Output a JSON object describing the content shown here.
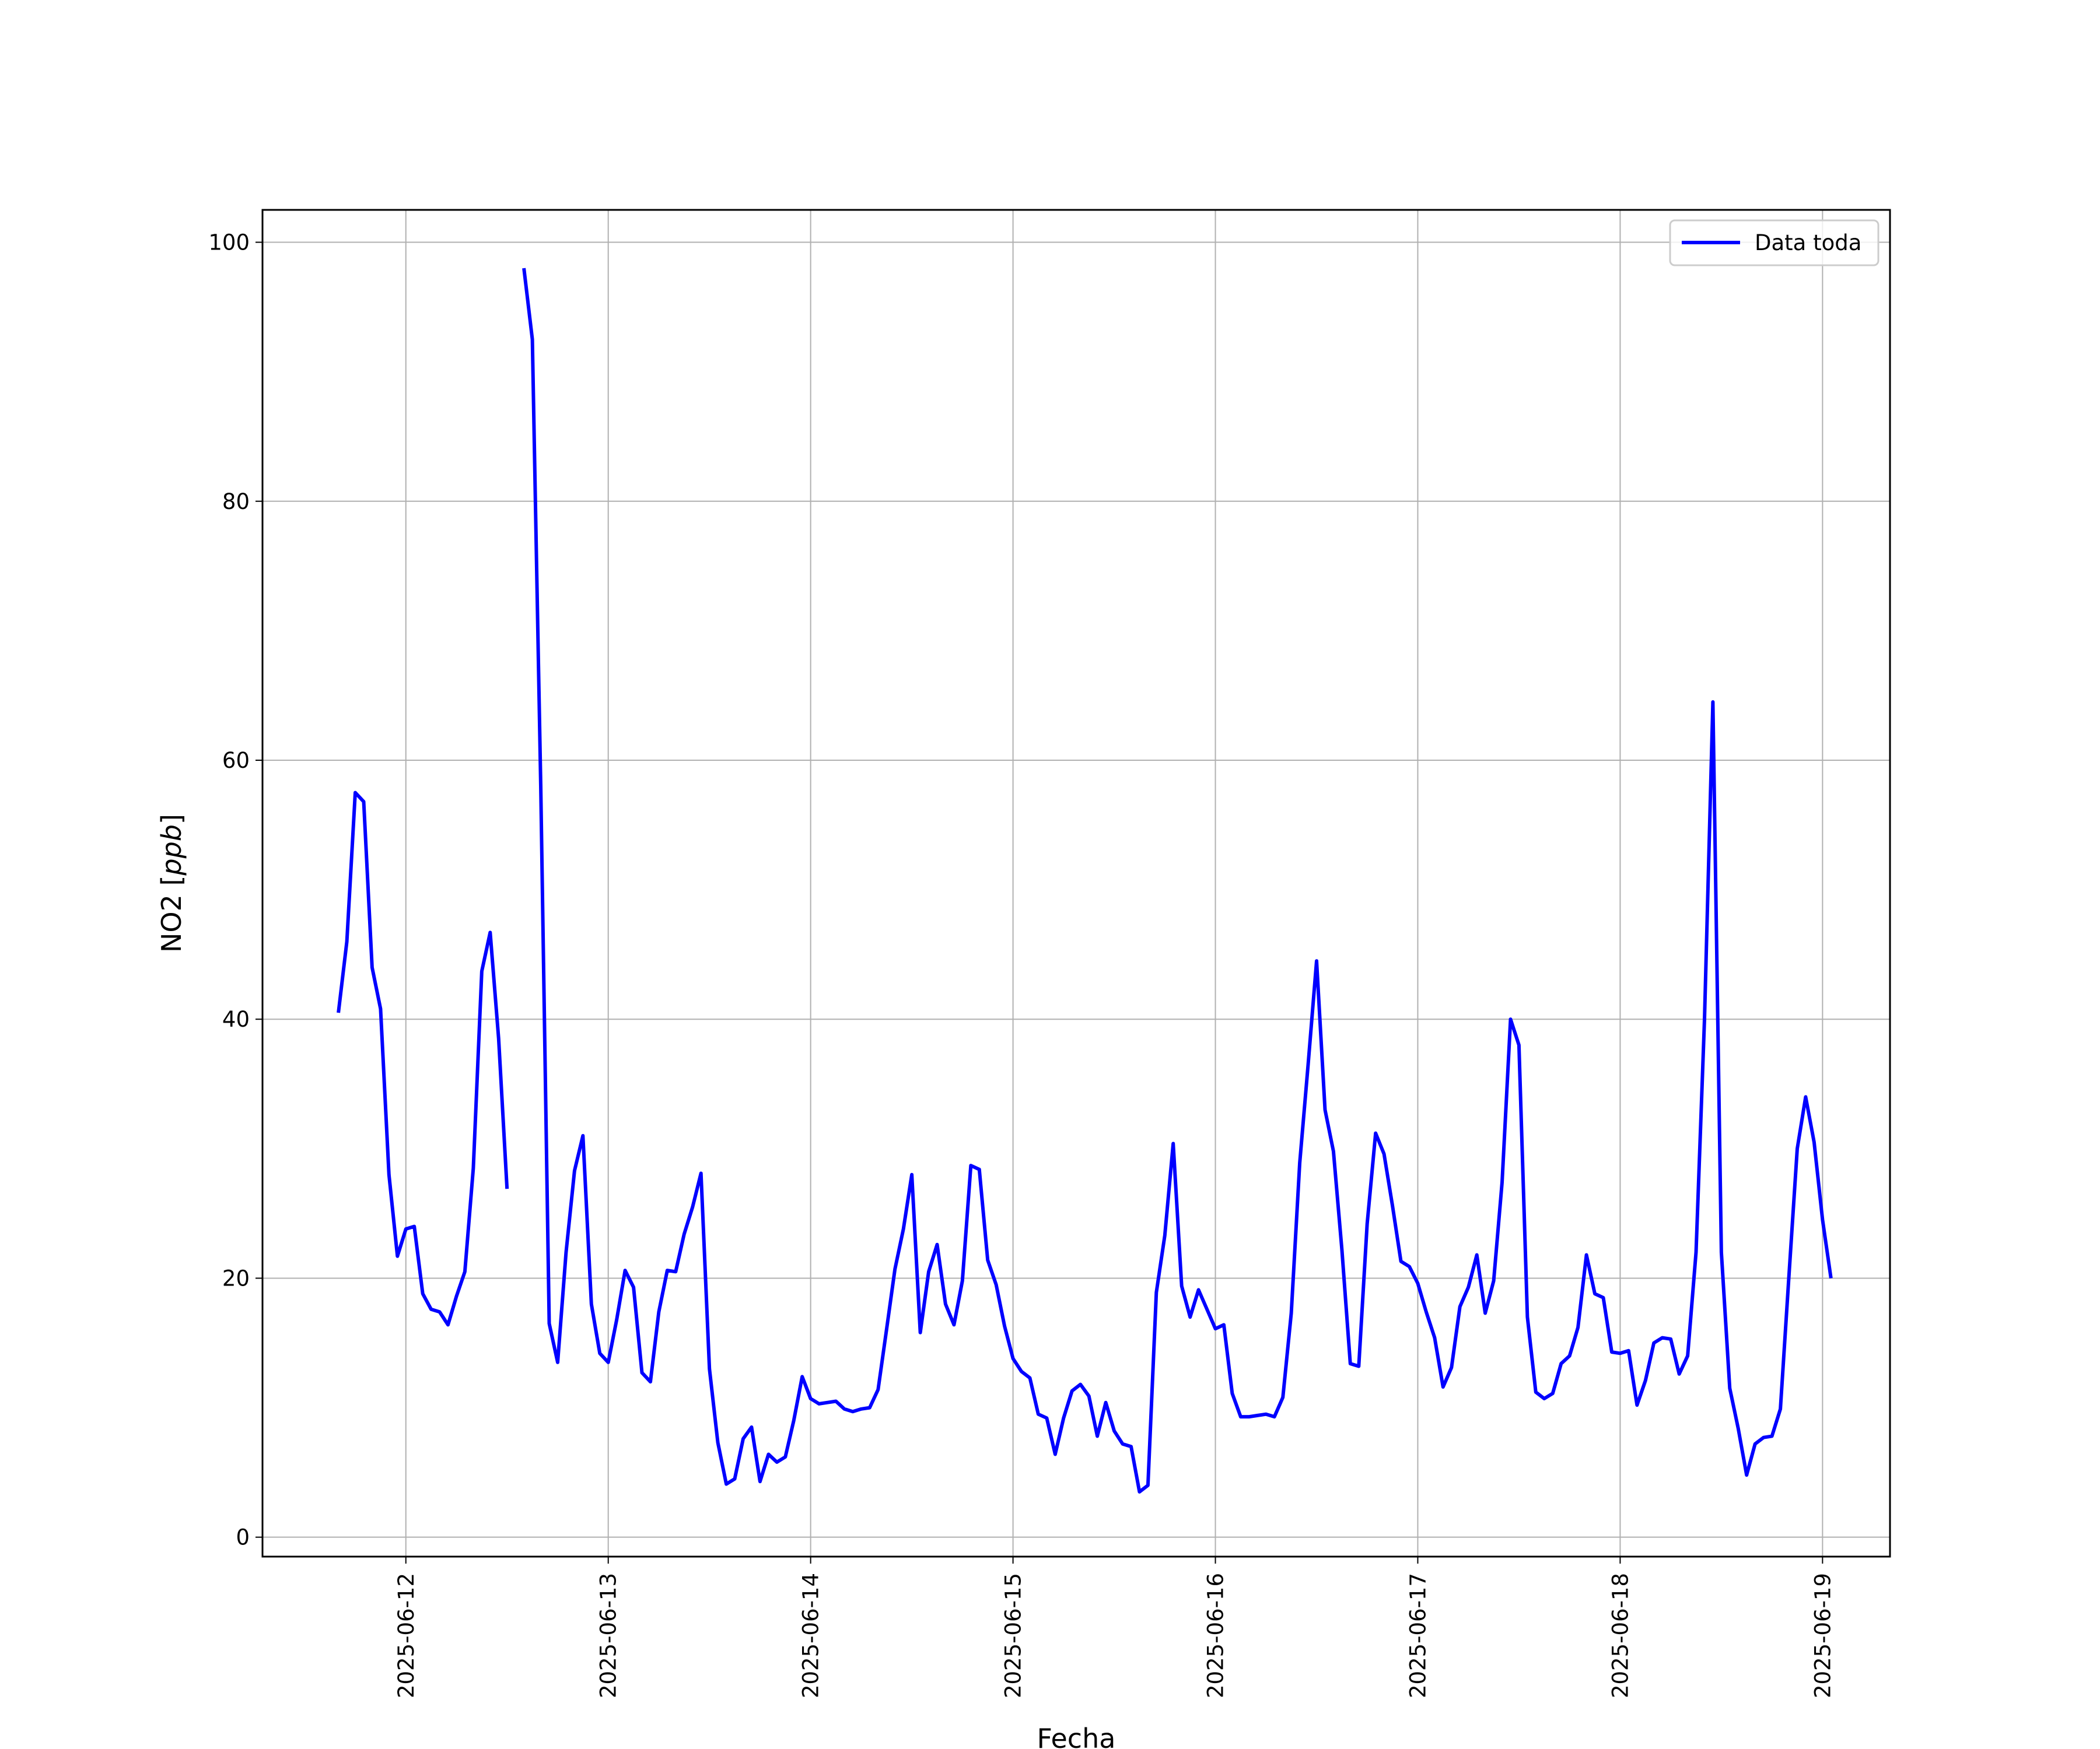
{
  "chart_data": {
    "type": "line",
    "title": "",
    "xlabel": "Fecha",
    "ylabel": "NO2 [",
    "ylabel_unit": "ppb",
    "ylabel_end": "]",
    "ylim": [
      -1.5,
      102.5
    ],
    "xlim": [
      "2025-06-11 07:00",
      "2025-06-19 08:00"
    ],
    "grid": true,
    "legend_position": "top-right",
    "x_ticks": [
      "2025-06-12",
      "2025-06-13",
      "2025-06-14",
      "2025-06-15",
      "2025-06-16",
      "2025-06-17",
      "2025-06-18",
      "2025-06-19"
    ],
    "y_ticks": [
      0,
      20,
      40,
      60,
      80,
      100
    ],
    "series": [
      {
        "name": "Data toda",
        "color": "#0000ff",
        "x_start": "2025-06-11 16:00",
        "x_step_hours": 1,
        "values": [
          40.5,
          46,
          57.5,
          56.8,
          44,
          40.8,
          28,
          21.7,
          23.8,
          24,
          18.8,
          17.6,
          17.4,
          16.4,
          18.6,
          20.5,
          28.5,
          43.7,
          46.7,
          38.5,
          26.9,
          null,
          98,
          92.5,
          58,
          16.5,
          13.5,
          22,
          28.3,
          31,
          18,
          14.2,
          13.5,
          16.8,
          20.6,
          19.3,
          12.7,
          12,
          17.4,
          20.6,
          20.5,
          23.4,
          25.5,
          28.1,
          13,
          7.3,
          4.1,
          4.5,
          7.6,
          8.5,
          4.3,
          6.4,
          5.8,
          6.2,
          9,
          12.4,
          10.7,
          10.3,
          10.4,
          10.5,
          9.9,
          9.7,
          9.9,
          10,
          11.4,
          16,
          20.7,
          23.8,
          28,
          15.8,
          20.5,
          22.6,
          18,
          16.4,
          19.8,
          28.7,
          28.4,
          21.4,
          19.5,
          16.3,
          13.8,
          12.8,
          12.3,
          9.5,
          9.2,
          6.4,
          9.2,
          11.3,
          11.8,
          10.9,
          7.8,
          10.4,
          8.2,
          7.2,
          7.0,
          3.5,
          4.0,
          18.9,
          23.3,
          30.4,
          19.4,
          17,
          19.1,
          17.6,
          16.1,
          16.4,
          11.1,
          9.3,
          9.3,
          9.4,
          9.5,
          9.3,
          10.8,
          17.3,
          28.9,
          36.5,
          44.5,
          33,
          29.8,
          22.2,
          13.4,
          13.2,
          24.2,
          31.2,
          29.6,
          25.6,
          21.3,
          20.9,
          19.6,
          17.4,
          15.4,
          11.6,
          13.1,
          17.8,
          19.3,
          21.8,
          17.3,
          19.8,
          27.4,
          40,
          38,
          17,
          11.2,
          10.7,
          11.1,
          13.4,
          14,
          16.2,
          21.8,
          18.8,
          18.5,
          14.3,
          14.2,
          14.4,
          10.2,
          12.1,
          15,
          15.4,
          15.3,
          12.6,
          14,
          22,
          40,
          64.5,
          22,
          11.5,
          8.4,
          4.8,
          7.2,
          7.7,
          7.8,
          9.9,
          20,
          30,
          34,
          30.5,
          24.5,
          20
        ]
      }
    ]
  }
}
